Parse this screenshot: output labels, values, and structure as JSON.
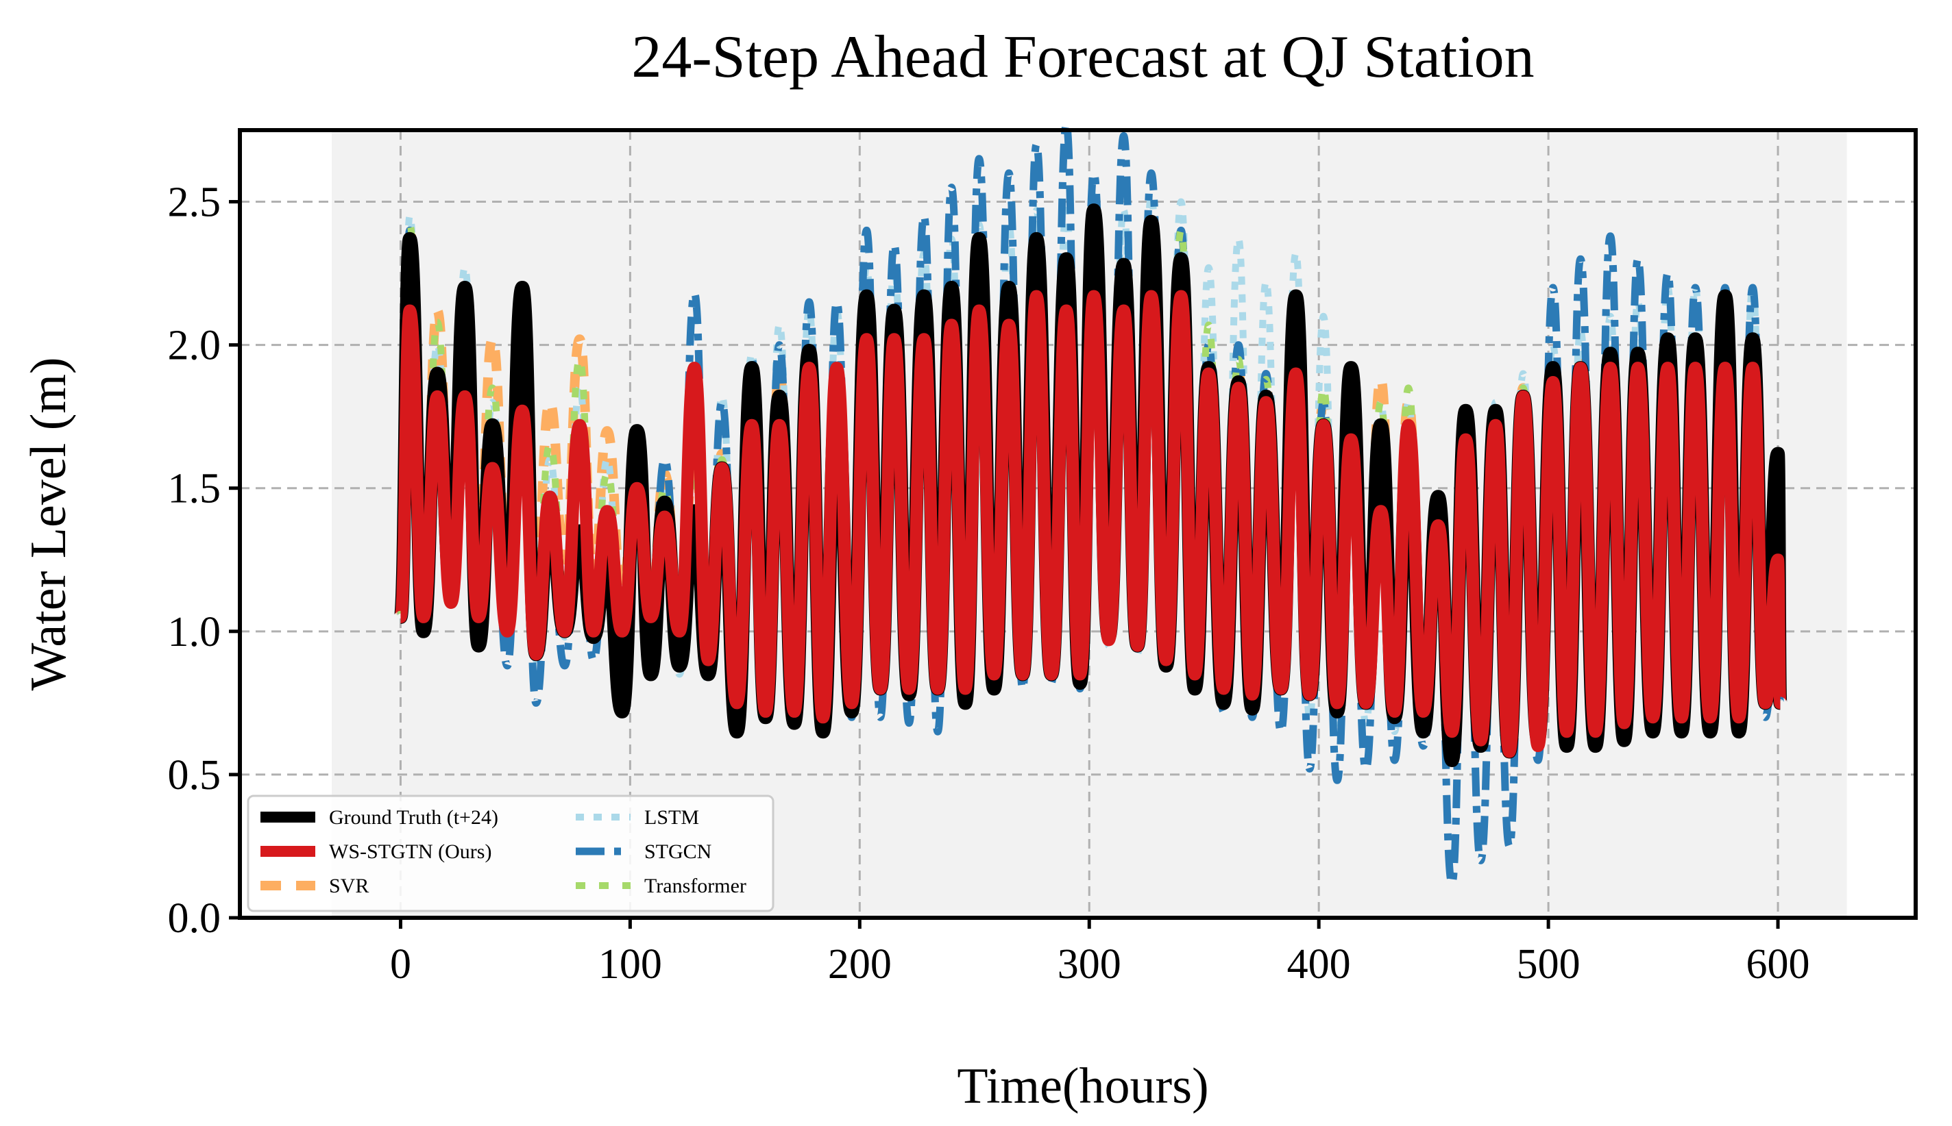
{
  "chart_data": {
    "type": "line",
    "title": "24-Step Ahead Forecast at QJ Station",
    "xlabel": "Time(hours)",
    "ylabel": "Water Level (m)",
    "xlim": [
      -70,
      660
    ],
    "ylim": [
      0,
      2.75
    ],
    "xticks": [
      0,
      100,
      200,
      300,
      400,
      500,
      600
    ],
    "yticks": [
      0.0,
      0.5,
      1.0,
      1.5,
      2.0,
      2.5
    ],
    "xtick_labels": [
      "0",
      "100",
      "200",
      "300",
      "400",
      "500",
      "600"
    ],
    "ytick_labels": [
      "0.0",
      "0.5",
      "1.0",
      "1.5",
      "2.0",
      "2.5"
    ],
    "grid": true,
    "legend_position": "lower-left",
    "colors": {
      "Ground Truth (t+24)": "#000000",
      "WS-STGTN (Ours)": "#d7191c",
      "SVR": "#fdae61",
      "LSTM": "#abd9e9",
      "STGCN": "#2c7bb6",
      "Transformer": "#a6d96a",
      "shade": "#f2f2f2"
    },
    "peaks_x": [
      4,
      16,
      28,
      40,
      53,
      65,
      78,
      90,
      103,
      115,
      128,
      140,
      153,
      165,
      178,
      190,
      203,
      215,
      228,
      240,
      252,
      265,
      277,
      290,
      302,
      315,
      327,
      340,
      352,
      365,
      377,
      390,
      402,
      414,
      427,
      439,
      452,
      464,
      477,
      489,
      502,
      514,
      527,
      539,
      552,
      564,
      577,
      589,
      600
    ],
    "series": [
      {
        "name": "Ground Truth (t+24)",
        "peaks": [
          2.37,
          1.9,
          2.2,
          1.72,
          2.2,
          1.4,
          1.35,
          1.25,
          1.7,
          1.45,
          1.42,
          1.57,
          1.92,
          1.82,
          1.98,
          1.82,
          2.17,
          2.12,
          2.17,
          2.2,
          2.37,
          2.2,
          2.37,
          2.3,
          2.47,
          2.28,
          2.43,
          2.3,
          1.92,
          1.87,
          1.82,
          2.17,
          1.72,
          1.92,
          1.72,
          1.62,
          1.47,
          1.77,
          1.77,
          1.82,
          1.92,
          1.92,
          1.97,
          1.97,
          2.02,
          2.02,
          2.17,
          2.02,
          1.62
        ],
        "troughs": [
          1.0,
          1.15,
          0.95,
          1.05,
          0.92,
          1.0,
          0.98,
          0.72,
          0.85,
          0.88,
          0.85,
          0.65,
          0.7,
          0.68,
          0.65,
          0.72,
          0.8,
          0.78,
          0.8,
          0.75,
          0.8,
          0.85,
          0.85,
          0.82,
          0.98,
          0.95,
          0.88,
          0.8,
          0.75,
          0.73,
          0.8,
          0.78,
          0.72,
          0.75,
          0.7,
          0.65,
          0.55,
          0.6,
          0.58,
          0.62,
          0.6,
          0.6,
          0.62,
          0.65,
          0.65,
          0.65,
          0.65,
          0.75,
          0.75
        ]
      },
      {
        "name": "WS-STGTN (Ours)",
        "peaks": [
          2.12,
          1.82,
          1.82,
          1.57,
          1.77,
          1.47,
          1.72,
          1.42,
          1.5,
          1.4,
          1.92,
          1.57,
          1.72,
          1.72,
          1.92,
          1.92,
          2.02,
          2.02,
          2.02,
          2.07,
          2.12,
          2.07,
          2.17,
          2.12,
          2.17,
          2.12,
          2.17,
          2.17,
          1.9,
          1.85,
          1.8,
          1.9,
          1.72,
          1.67,
          1.42,
          1.72,
          1.37,
          1.67,
          1.72,
          1.82,
          1.87,
          1.92,
          1.92,
          1.92,
          1.92,
          1.92,
          1.92,
          1.92,
          1.25
        ],
        "troughs": [
          1.05,
          1.1,
          1.05,
          1.0,
          0.92,
          1.0,
          1.0,
          1.0,
          1.05,
          1.0,
          0.9,
          0.75,
          0.72,
          0.72,
          0.7,
          0.75,
          0.8,
          0.8,
          0.8,
          0.8,
          0.85,
          0.85,
          0.85,
          0.85,
          0.97,
          0.95,
          0.9,
          0.85,
          0.8,
          0.78,
          0.8,
          0.78,
          0.75,
          0.75,
          0.72,
          0.72,
          0.65,
          0.62,
          0.58,
          0.6,
          0.65,
          0.65,
          0.68,
          0.7,
          0.7,
          0.7,
          0.7,
          0.75,
          0.75
        ]
      },
      {
        "name": "SVR",
        "peaks": [
          2.4,
          2.12,
          2.12,
          2.02,
          2.02,
          1.8,
          2.02,
          1.7,
          1.6,
          1.55,
          1.6,
          1.62,
          1.8,
          1.9,
          1.95,
          1.95,
          2.05,
          2.05,
          2.1,
          2.12,
          2.15,
          2.12,
          2.17,
          2.15,
          2.2,
          2.17,
          2.2,
          2.2,
          1.95,
          1.9,
          1.85,
          1.95,
          1.8,
          1.75,
          1.88,
          1.8,
          1.45,
          1.7,
          1.75,
          1.85,
          1.9,
          1.95,
          1.95,
          1.95,
          1.95,
          1.95,
          1.95,
          1.95,
          1.3
        ],
        "troughs": [
          1.2,
          1.3,
          1.3,
          1.25,
          1.25,
          1.25,
          1.2,
          1.15,
          1.1,
          1.05,
          1.0,
          0.9,
          0.85,
          0.85,
          0.85,
          0.88,
          0.9,
          0.9,
          0.9,
          0.9,
          0.95,
          0.95,
          0.95,
          0.95,
          1.0,
          1.0,
          0.95,
          0.92,
          0.88,
          0.85,
          0.85,
          0.85,
          0.85,
          0.85,
          0.8,
          0.78,
          0.75,
          0.75,
          0.75,
          0.75,
          0.75,
          0.75,
          0.75,
          0.75,
          0.75,
          0.75,
          0.75,
          0.78,
          0.8
        ]
      },
      {
        "name": "LSTM",
        "peaks": [
          2.45,
          2.0,
          2.27,
          1.8,
          2.1,
          1.6,
          1.85,
          1.6,
          1.55,
          1.5,
          1.75,
          1.82,
          1.97,
          2.07,
          2.12,
          2.12,
          2.27,
          2.27,
          2.32,
          2.37,
          2.42,
          2.42,
          2.47,
          2.47,
          2.52,
          2.47,
          2.52,
          2.5,
          2.27,
          2.37,
          2.22,
          2.32,
          2.1,
          1.9,
          1.8,
          1.8,
          1.45,
          1.75,
          1.8,
          1.9,
          2.0,
          2.05,
          2.1,
          2.15,
          2.2,
          2.2,
          2.2,
          2.2,
          1.4
        ],
        "troughs": [
          1.1,
          1.15,
          1.0,
          1.0,
          0.9,
          0.98,
          0.98,
          0.8,
          0.85,
          0.85,
          0.82,
          0.72,
          0.72,
          0.7,
          0.68,
          0.72,
          0.78,
          0.78,
          0.8,
          0.78,
          0.82,
          0.85,
          0.85,
          0.82,
          0.95,
          0.92,
          0.88,
          0.8,
          0.75,
          0.72,
          0.72,
          0.7,
          0.68,
          0.68,
          0.65,
          0.62,
          0.55,
          0.58,
          0.58,
          0.6,
          0.6,
          0.6,
          0.62,
          0.65,
          0.65,
          0.65,
          0.65,
          0.72,
          0.75
        ]
      },
      {
        "name": "STGCN",
        "peaks": [
          2.4,
          1.9,
          2.1,
          1.65,
          2.05,
          1.35,
          1.6,
          1.4,
          1.55,
          1.6,
          2.18,
          1.8,
          1.95,
          2.0,
          2.15,
          2.15,
          2.4,
          2.35,
          2.45,
          2.55,
          2.65,
          2.6,
          2.7,
          2.77,
          2.6,
          2.73,
          2.6,
          2.4,
          2.0,
          2.0,
          1.9,
          2.0,
          1.8,
          1.7,
          1.6,
          1.5,
          1.2,
          1.6,
          1.45,
          1.5,
          2.2,
          2.3,
          2.38,
          2.3,
          2.25,
          2.2,
          2.2,
          2.2,
          1.25
        ],
        "troughs": [
          1.05,
          1.1,
          0.95,
          0.88,
          0.75,
          0.88,
          0.9,
          1.0,
          1.0,
          1.0,
          0.95,
          0.75,
          0.72,
          0.7,
          0.68,
          0.7,
          0.7,
          0.68,
          0.65,
          0.75,
          0.8,
          0.8,
          0.82,
          0.8,
          0.98,
          0.95,
          0.88,
          0.8,
          0.72,
          0.7,
          0.65,
          0.52,
          0.48,
          0.52,
          0.55,
          0.6,
          0.12,
          0.2,
          0.25,
          0.55,
          0.65,
          0.65,
          0.65,
          0.68,
          0.68,
          0.7,
          0.7,
          0.7,
          0.75
        ]
      },
      {
        "name": "Transformer",
        "peaks": [
          2.42,
          2.08,
          2.2,
          1.85,
          2.02,
          1.65,
          1.95,
          1.55,
          1.55,
          1.5,
          1.55,
          1.6,
          1.75,
          1.85,
          1.9,
          1.9,
          2.0,
          2.0,
          2.05,
          2.07,
          2.12,
          2.1,
          2.15,
          2.15,
          2.2,
          2.25,
          2.35,
          2.4,
          2.07,
          1.95,
          1.88,
          1.95,
          1.85,
          1.75,
          1.8,
          1.85,
          1.45,
          1.7,
          1.75,
          1.85,
          1.92,
          1.95,
          1.95,
          1.95,
          2.0,
          2.0,
          2.05,
          2.0,
          1.3
        ],
        "troughs": [
          1.15,
          1.25,
          1.2,
          1.2,
          1.15,
          1.15,
          1.15,
          1.1,
          1.05,
          1.0,
          0.95,
          0.85,
          0.82,
          0.82,
          0.82,
          0.85,
          0.88,
          0.88,
          0.88,
          0.88,
          0.92,
          0.92,
          0.92,
          0.92,
          1.0,
          0.98,
          0.92,
          0.9,
          0.85,
          0.82,
          0.82,
          0.82,
          0.8,
          0.8,
          0.78,
          0.75,
          0.72,
          0.72,
          0.72,
          0.72,
          0.72,
          0.72,
          0.72,
          0.72,
          0.72,
          0.72,
          0.72,
          0.75,
          0.8
        ]
      }
    ]
  }
}
